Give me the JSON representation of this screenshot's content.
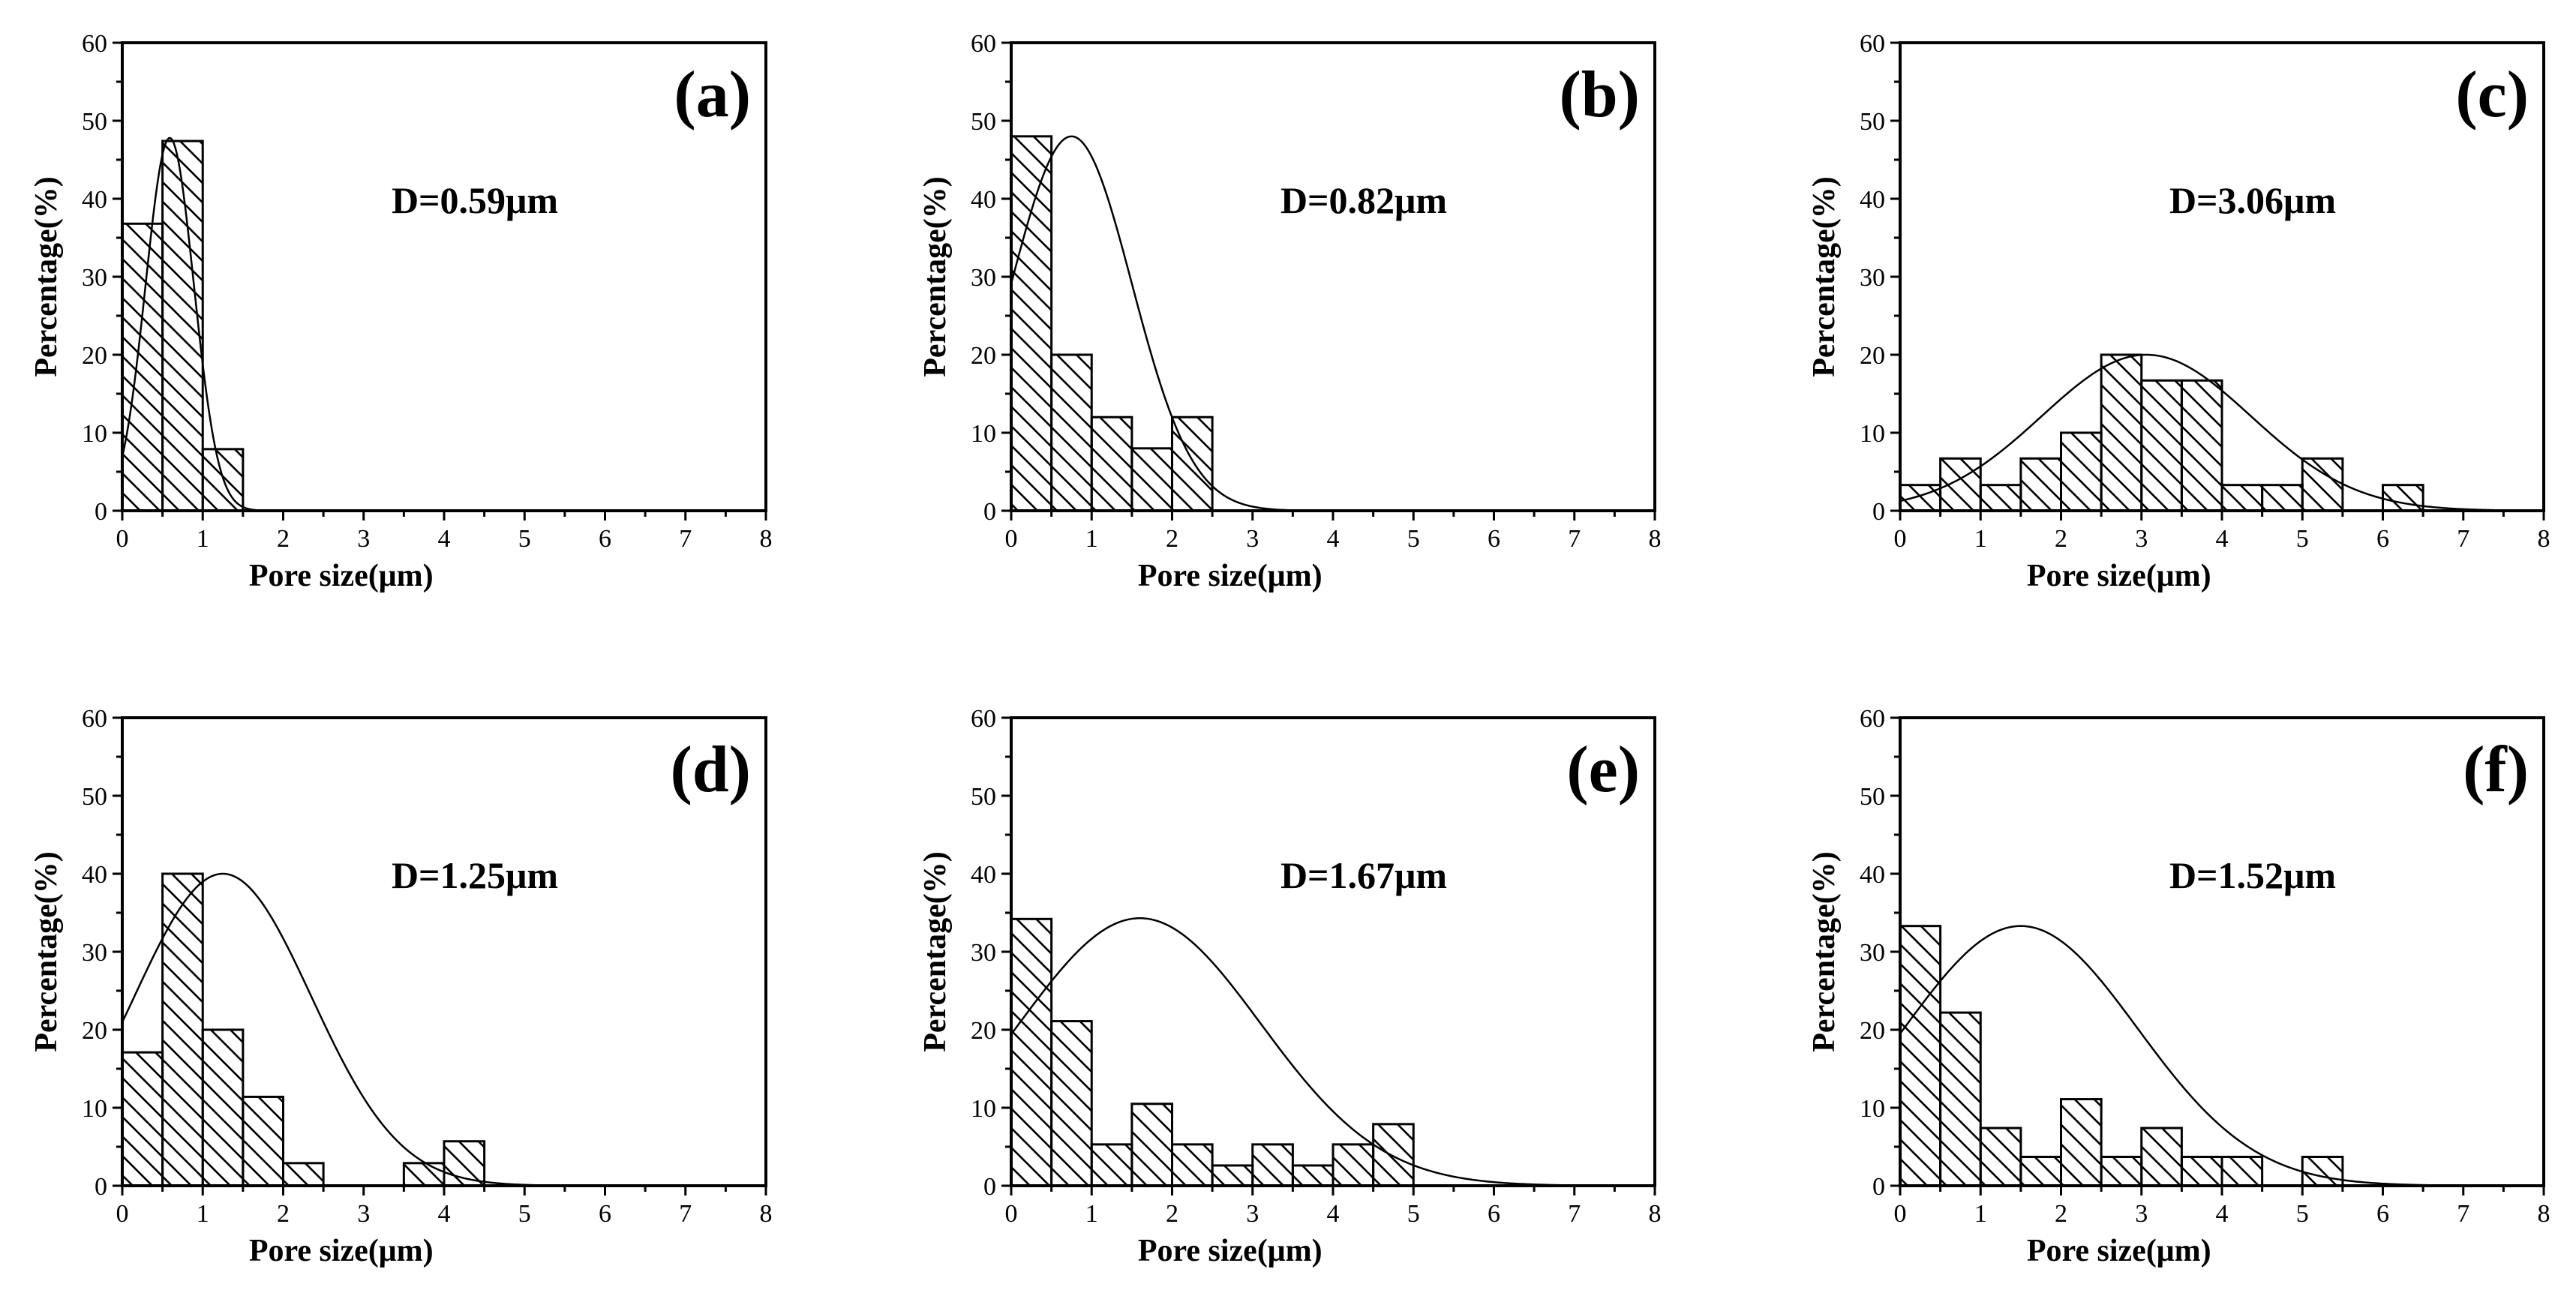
{
  "colors": {
    "ink": "#000000",
    "background": "#ffffff"
  },
  "chart_data": [
    {
      "type": "bar",
      "panel": "(a)",
      "annotation": "D=0.59μm",
      "xlabel": "Pore size(μm)",
      "ylabel": "Percentage(%)",
      "xlim": [
        0,
        8
      ],
      "ylim": [
        0,
        60
      ],
      "xticks": [
        "0",
        "1",
        "2",
        "3",
        "4",
        "5",
        "6",
        "7",
        "8"
      ],
      "yticks": [
        "0",
        "10",
        "20",
        "30",
        "40",
        "50",
        "60"
      ],
      "bin_width": 0.5,
      "bins": [
        0,
        0.5,
        1.0
      ],
      "values": [
        36.8,
        47.4,
        7.9
      ],
      "fit": {
        "mean": 0.59,
        "sigma": 0.3,
        "peak": 47.8
      }
    },
    {
      "type": "bar",
      "panel": "(b)",
      "annotation": "D=0.82μm",
      "xlabel": "Pore size(μm)",
      "ylabel": "Percentage(%)",
      "xlim": [
        0,
        8
      ],
      "ylim": [
        0,
        60
      ],
      "xticks": [
        "0",
        "1",
        "2",
        "3",
        "4",
        "5",
        "6",
        "7",
        "8"
      ],
      "yticks": [
        "0",
        "10",
        "20",
        "30",
        "40",
        "50",
        "60"
      ],
      "bin_width": 0.5,
      "bins": [
        0,
        0.5,
        1.0,
        1.5,
        2.0
      ],
      "values": [
        48,
        20,
        12,
        8,
        12
      ],
      "fit": {
        "mean": 0.75,
        "sigma": 0.75,
        "peak": 48
      }
    },
    {
      "type": "bar",
      "panel": "(c)",
      "annotation": "D=3.06μm",
      "xlabel": "Pore size(μm)",
      "ylabel": "Percentage(%)",
      "xlim": [
        0,
        8
      ],
      "ylim": [
        0,
        60
      ],
      "xticks": [
        "0",
        "1",
        "2",
        "3",
        "4",
        "5",
        "6",
        "7",
        "8"
      ],
      "yticks": [
        "0",
        "10",
        "20",
        "30",
        "40",
        "50",
        "60"
      ],
      "bin_width": 0.5,
      "bins": [
        0,
        0.5,
        1.0,
        1.5,
        2.0,
        2.5,
        3.0,
        3.5,
        4.0,
        4.5,
        5.0,
        5.5,
        6.0
      ],
      "values": [
        3.3,
        6.7,
        3.3,
        6.7,
        10,
        20,
        16.7,
        16.7,
        3.3,
        3.3,
        6.7,
        0,
        3.3
      ],
      "fit": {
        "mean": 3.06,
        "sigma": 1.3,
        "peak": 20
      }
    },
    {
      "type": "bar",
      "panel": "(d)",
      "annotation": "D=1.25μm",
      "xlabel": "Pore size(μm)",
      "ylabel": "Percentage(%)",
      "xlim": [
        0,
        8
      ],
      "ylim": [
        0,
        60
      ],
      "xticks": [
        "0",
        "1",
        "2",
        "3",
        "4",
        "5",
        "6",
        "7",
        "8"
      ],
      "yticks": [
        "0",
        "10",
        "20",
        "30",
        "40",
        "50",
        "60"
      ],
      "bin_width": 0.5,
      "bins": [
        0,
        0.5,
        1.0,
        1.5,
        2.0,
        2.5,
        3.0,
        3.5,
        4.0
      ],
      "values": [
        17.1,
        40,
        20,
        11.4,
        2.9,
        0,
        0,
        2.9,
        5.7
      ],
      "fit": {
        "mean": 1.25,
        "sigma": 1.1,
        "peak": 40
      }
    },
    {
      "type": "bar",
      "panel": "(e)",
      "annotation": "D=1.67μm",
      "xlabel": "Pore size(μm)",
      "ylabel": "Percentage(%)",
      "xlim": [
        0,
        8
      ],
      "ylim": [
        0,
        60
      ],
      "xticks": [
        "0",
        "1",
        "2",
        "3",
        "4",
        "5",
        "6",
        "7",
        "8"
      ],
      "yticks": [
        "0",
        "10",
        "20",
        "30",
        "40",
        "50",
        "60"
      ],
      "bin_width": 0.5,
      "bins": [
        0,
        0.5,
        1.0,
        1.5,
        2.0,
        2.5,
        3.0,
        3.5,
        4.0,
        4.5
      ],
      "values": [
        34.2,
        21.1,
        5.3,
        10.5,
        5.3,
        2.6,
        5.3,
        2.6,
        5.3,
        7.9
      ],
      "fit": {
        "mean": 1.6,
        "sigma": 1.5,
        "peak": 34.3
      }
    },
    {
      "type": "bar",
      "panel": "(f)",
      "annotation": "D=1.52μm",
      "xlabel": "Pore size(μm)",
      "ylabel": "Percentage(%)",
      "xlim": [
        0,
        8
      ],
      "ylim": [
        0,
        60
      ],
      "xticks": [
        "0",
        "1",
        "2",
        "3",
        "4",
        "5",
        "6",
        "7",
        "8"
      ],
      "yticks": [
        "0",
        "10",
        "20",
        "30",
        "40",
        "50",
        "60"
      ],
      "bin_width": 0.5,
      "bins": [
        0,
        0.5,
        1.0,
        1.5,
        2.0,
        2.5,
        3.0,
        3.5,
        4.0,
        4.5,
        5.0
      ],
      "values": [
        33.3,
        22.2,
        7.4,
        3.7,
        11.1,
        3.7,
        7.4,
        3.7,
        3.7,
        0,
        3.7
      ],
      "fit": {
        "mean": 1.5,
        "sigma": 1.45,
        "peak": 33.3
      }
    }
  ]
}
